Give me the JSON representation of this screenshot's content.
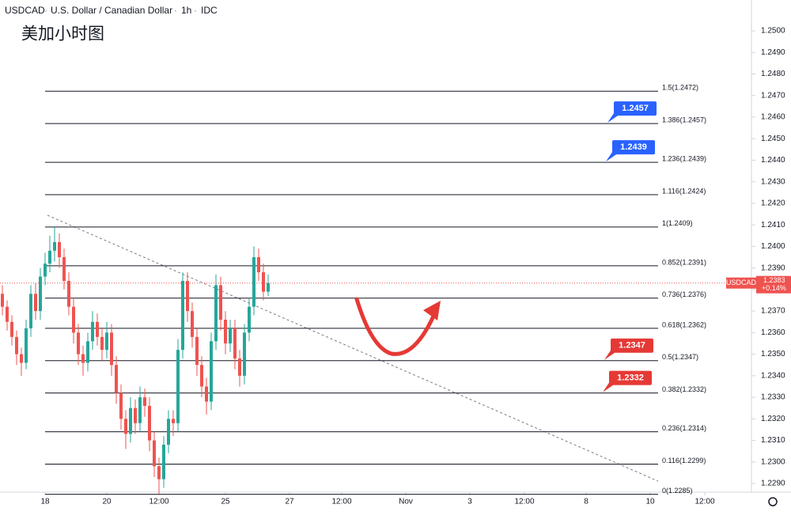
{
  "chart_data": {
    "type": "candlestick",
    "symbol": "USDCAD",
    "description": "U.S. Dollar / Canadian Dollar",
    "interval": "1h",
    "source": "IDC",
    "title": "美加小时图",
    "up_color": "#26a69a",
    "down_color": "#ef5350",
    "ohlc": [
      [
        1.2378,
        1.2382,
        1.2368,
        1.2372
      ],
      [
        1.2372,
        1.2375,
        1.2361,
        1.2365
      ],
      [
        1.2365,
        1.2368,
        1.2354,
        1.2358
      ],
      [
        1.2358,
        1.2361,
        1.2345,
        1.235
      ],
      [
        1.235,
        1.2353,
        1.234,
        1.2346
      ],
      [
        1.2346,
        1.2366,
        1.2343,
        1.2362
      ],
      [
        1.2362,
        1.2382,
        1.2358,
        1.2378
      ],
      [
        1.2378,
        1.2383,
        1.2366,
        1.237
      ],
      [
        1.237,
        1.239,
        1.2366,
        1.2386
      ],
      [
        1.2386,
        1.2397,
        1.2382,
        1.2392
      ],
      [
        1.2392,
        1.2405,
        1.2388,
        1.2398
      ],
      [
        1.2398,
        1.2409,
        1.2393,
        1.2402
      ],
      [
        1.2402,
        1.2406,
        1.239,
        1.2395
      ],
      [
        1.2395,
        1.2399,
        1.238,
        1.2384
      ],
      [
        1.2384,
        1.2388,
        1.2368,
        1.2372
      ],
      [
        1.2372,
        1.2376,
        1.2355,
        1.236
      ],
      [
        1.236,
        1.2364,
        1.2345,
        1.235
      ],
      [
        1.235,
        1.2354,
        1.234,
        1.2346
      ],
      [
        1.2346,
        1.236,
        1.2342,
        1.2356
      ],
      [
        1.2356,
        1.237,
        1.2352,
        1.2365
      ],
      [
        1.2365,
        1.2369,
        1.2354,
        1.2358
      ],
      [
        1.2358,
        1.2362,
        1.2347,
        1.2352
      ],
      [
        1.2352,
        1.2365,
        1.2348,
        1.236
      ],
      [
        1.236,
        1.2364,
        1.234,
        1.2345
      ],
      [
        1.2345,
        1.2349,
        1.2327,
        1.2332
      ],
      [
        1.2332,
        1.2336,
        1.2315,
        1.232
      ],
      [
        1.232,
        1.2324,
        1.2306,
        1.2313
      ],
      [
        1.2313,
        1.233,
        1.2309,
        1.2325
      ],
      [
        1.2325,
        1.2329,
        1.2313,
        1.2318
      ],
      [
        1.2318,
        1.2335,
        1.2314,
        1.233
      ],
      [
        1.233,
        1.2334,
        1.2321,
        1.2326
      ],
      [
        1.2326,
        1.233,
        1.2305,
        1.231
      ],
      [
        1.231,
        1.2314,
        1.2293,
        1.2298
      ],
      [
        1.2298,
        1.2302,
        1.2285,
        1.2292
      ],
      [
        1.2292,
        1.2312,
        1.2288,
        1.2308
      ],
      [
        1.2308,
        1.2324,
        1.2304,
        1.232
      ],
      [
        1.232,
        1.2324,
        1.2312,
        1.2318
      ],
      [
        1.2318,
        1.2357,
        1.2314,
        1.2352
      ],
      [
        1.2352,
        1.2388,
        1.2348,
        1.2384
      ],
      [
        1.2384,
        1.2388,
        1.2365,
        1.237
      ],
      [
        1.237,
        1.2374,
        1.2353,
        1.2358
      ],
      [
        1.2358,
        1.2362,
        1.234,
        1.2345
      ],
      [
        1.2345,
        1.2349,
        1.233,
        1.2335
      ],
      [
        1.2335,
        1.2339,
        1.2322,
        1.2328
      ],
      [
        1.2328,
        1.236,
        1.2324,
        1.2356
      ],
      [
        1.2356,
        1.2387,
        1.2352,
        1.2382
      ],
      [
        1.2382,
        1.2386,
        1.2361,
        1.2366
      ],
      [
        1.2366,
        1.237,
        1.235,
        1.2355
      ],
      [
        1.2355,
        1.2366,
        1.2351,
        1.2362
      ],
      [
        1.2362,
        1.2366,
        1.2343,
        1.2348
      ],
      [
        1.2348,
        1.2352,
        1.2335,
        1.234
      ],
      [
        1.234,
        1.2364,
        1.2336,
        1.236
      ],
      [
        1.236,
        1.2376,
        1.2356,
        1.2372
      ],
      [
        1.2372,
        1.24,
        1.2368,
        1.2395
      ],
      [
        1.2395,
        1.2399,
        1.2384,
        1.2388
      ],
      [
        1.2388,
        1.2392,
        1.2375,
        1.2379
      ],
      [
        1.2379,
        1.2387,
        1.2377,
        1.2383
      ]
    ],
    "xlim": [
      0,
      156
    ],
    "xticks": [
      {
        "value": 9.5,
        "label": "18"
      },
      {
        "value": 22.5,
        "label": "20"
      },
      {
        "value": 33.5,
        "label": "12:00"
      },
      {
        "value": 47.5,
        "label": "25"
      },
      {
        "value": 61,
        "label": "27"
      },
      {
        "value": 72,
        "label": "12:00"
      },
      {
        "value": 85.5,
        "label": "Nov"
      },
      {
        "value": 99,
        "label": "3"
      },
      {
        "value": 110.5,
        "label": "12:00"
      },
      {
        "value": 123.5,
        "label": "8"
      },
      {
        "value": 137,
        "label": "10"
      },
      {
        "value": 148.5,
        "label": "12:00"
      }
    ],
    "ylim": [
      1.22845,
      1.25055
    ],
    "yticks": [
      {
        "value": 1.25,
        "label": "1.2500"
      },
      {
        "value": 1.249,
        "label": "1.2490"
      },
      {
        "value": 1.248,
        "label": "1.2480"
      },
      {
        "value": 1.247,
        "label": "1.2470"
      },
      {
        "value": 1.246,
        "label": "1.2460"
      },
      {
        "value": 1.245,
        "label": "1.2450"
      },
      {
        "value": 1.244,
        "label": "1.2440"
      },
      {
        "value": 1.243,
        "label": "1.2430"
      },
      {
        "value": 1.242,
        "label": "1.2420"
      },
      {
        "value": 1.241,
        "label": "1.2410"
      },
      {
        "value": 1.24,
        "label": "1.2400"
      },
      {
        "value": 1.239,
        "label": "1.2390"
      },
      {
        "value": 1.238,
        "label": "1.2380"
      },
      {
        "value": 1.237,
        "label": "1.2370"
      },
      {
        "value": 1.236,
        "label": "1.2360"
      },
      {
        "value": 1.235,
        "label": "1.2350"
      },
      {
        "value": 1.234,
        "label": "1.2340"
      },
      {
        "value": 1.233,
        "label": "1.2330"
      },
      {
        "value": 1.232,
        "label": "1.2320"
      },
      {
        "value": 1.231,
        "label": "1.2310"
      },
      {
        "value": 1.23,
        "label": "1.2300"
      },
      {
        "value": 1.229,
        "label": "1.2290"
      }
    ],
    "fib_levels": [
      {
        "value": 1.2472,
        "label": "1.5(1.2472)"
      },
      {
        "value": 1.2457,
        "label": "1.386(1.2457)"
      },
      {
        "value": 1.2439,
        "label": "1.236(1.2439)"
      },
      {
        "value": 1.2424,
        "label": "1.116(1.2424)"
      },
      {
        "value": 1.2409,
        "label": "1(1.2409)"
      },
      {
        "value": 1.2391,
        "label": "0.852(1.2391)"
      },
      {
        "value": 1.2376,
        "label": "0.736(1.2376)"
      },
      {
        "value": 1.2362,
        "label": "0.618(1.2362)"
      },
      {
        "value": 1.2347,
        "label": "0.5(1.2347)"
      },
      {
        "value": 1.2332,
        "label": "0.382(1.2332)"
      },
      {
        "value": 1.2314,
        "label": "0.236(1.2314)"
      },
      {
        "value": 1.2299,
        "label": "0.116(1.2299)"
      },
      {
        "value": 1.2285,
        "label": "0(1.2285)"
      }
    ],
    "price_tags": [
      {
        "value": 1.2457,
        "color": "#2962ff"
      },
      {
        "value": 1.2439,
        "color": "#2962ff"
      },
      {
        "value": 1.2347,
        "color": "#e53935"
      },
      {
        "value": 1.2332,
        "color": "#e53935"
      }
    ],
    "last_price": 1.2383,
    "change_label": "+0.14%",
    "last_color": "#ef5350"
  }
}
